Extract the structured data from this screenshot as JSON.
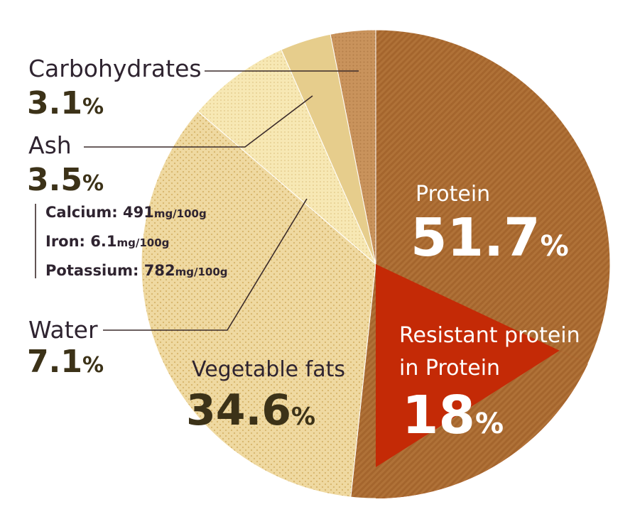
{
  "colors": {
    "protein": "#b07238",
    "resistant": "#c42a06",
    "fats": "#efd9a1",
    "water": "#f7e8b4",
    "ash": "#e6cd8c",
    "carbohydrates": "#c9935c",
    "text_dark": "#2f2430",
    "text_pct": "#3c3218"
  },
  "chart_data": {
    "type": "pie",
    "slices": [
      {
        "name": "Protein",
        "value": 51.7,
        "pct_label": "51.7",
        "unit": "%"
      },
      {
        "name": "Vegetable fats",
        "value": 34.6,
        "pct_label": "34.6",
        "unit": "%"
      },
      {
        "name": "Water",
        "value": 7.1,
        "pct_label": "7.1",
        "unit": "%"
      },
      {
        "name": "Ash",
        "value": 3.5,
        "pct_label": "3.5",
        "unit": "%"
      },
      {
        "name": "Carbohydrates",
        "value": 3.1,
        "pct_label": "3.1",
        "unit": "%"
      }
    ],
    "sub_slice": {
      "name_line1": "Resistant protein",
      "name_line2": "in Protein",
      "value": 18,
      "pct_label": "18",
      "unit": "%"
    },
    "ash_minerals": [
      {
        "label": "Calcium: 491",
        "unit": "mg/100g"
      },
      {
        "label": "Iron: 6.1",
        "unit": "mg/100g"
      },
      {
        "label": "Potassium: 782",
        "unit": "mg/100g"
      }
    ]
  }
}
